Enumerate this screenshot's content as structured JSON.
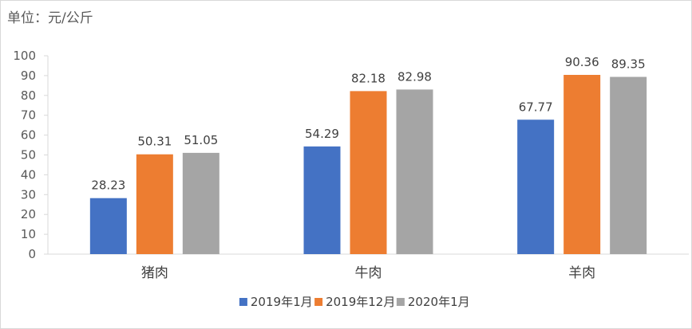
{
  "unit_text": "单位：元/公斤",
  "colors": {
    "2019年1月": "#4472c4",
    "2019年12月": "#ed7d31",
    "2020年1月": "#a5a5a5"
  },
  "chart_data": {
    "type": "bar",
    "title": "",
    "xlabel": "",
    "ylabel": "",
    "unit": "单位：元/公斤",
    "categories": [
      "猪肉",
      "牛肉",
      "羊肉"
    ],
    "series": [
      {
        "name": "2019年1月",
        "values": [
          28.23,
          54.29,
          67.77
        ]
      },
      {
        "name": "2019年12月",
        "values": [
          50.31,
          82.18,
          90.36
        ]
      },
      {
        "name": "2020年1月",
        "values": [
          51.05,
          82.98,
          89.35
        ]
      }
    ],
    "ylim": [
      0,
      100
    ],
    "yticks": [
      0,
      10,
      20,
      30,
      40,
      50,
      60,
      70,
      80,
      90,
      100
    ],
    "grid": false,
    "legend": "bottom",
    "data_labels": true
  }
}
